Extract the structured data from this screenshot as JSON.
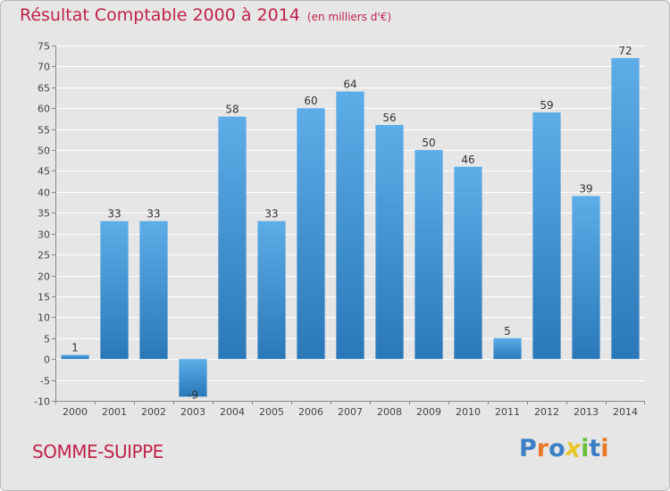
{
  "chart_data": {
    "type": "bar",
    "title": "Résultat Comptable 2000 à 2014",
    "subtitle": "(en milliers d'€)",
    "categories": [
      "2000",
      "2001",
      "2002",
      "2003",
      "2004",
      "2005",
      "2006",
      "2007",
      "2008",
      "2009",
      "2010",
      "2011",
      "2012",
      "2013",
      "2014"
    ],
    "values": [
      1,
      33,
      33,
      -9,
      58,
      33,
      60,
      64,
      56,
      50,
      46,
      5,
      59,
      39,
      72
    ],
    "data_labels": [
      "1",
      "33",
      "33",
      "-9",
      "58",
      "33",
      "60",
      "64",
      "56",
      "50",
      "46",
      "5",
      "59",
      "39",
      "72"
    ],
    "ylim": [
      -10,
      75
    ],
    "yticks": [
      -10,
      -5,
      0,
      5,
      10,
      15,
      20,
      25,
      30,
      35,
      40,
      45,
      50,
      55,
      60,
      65,
      70,
      75
    ],
    "grid": true,
    "colors": {
      "bar_light": "#5dade8",
      "bar_dark": "#2a78b8",
      "title": "#c0224b"
    }
  },
  "footer": {
    "location": "SOMME-SUIPPE",
    "brand_letters": [
      {
        "ch": "P",
        "color": "#3b7fc4"
      },
      {
        "ch": "r",
        "color": "#e8782a"
      },
      {
        "ch": "o",
        "color": "#3b7fc4"
      },
      {
        "ch": "x",
        "color": "#e8c52a"
      },
      {
        "ch": "i",
        "color": "#6abf3a"
      },
      {
        "ch": "t",
        "color": "#3b7fc4"
      },
      {
        "ch": "i",
        "color": "#e8782a"
      }
    ]
  }
}
